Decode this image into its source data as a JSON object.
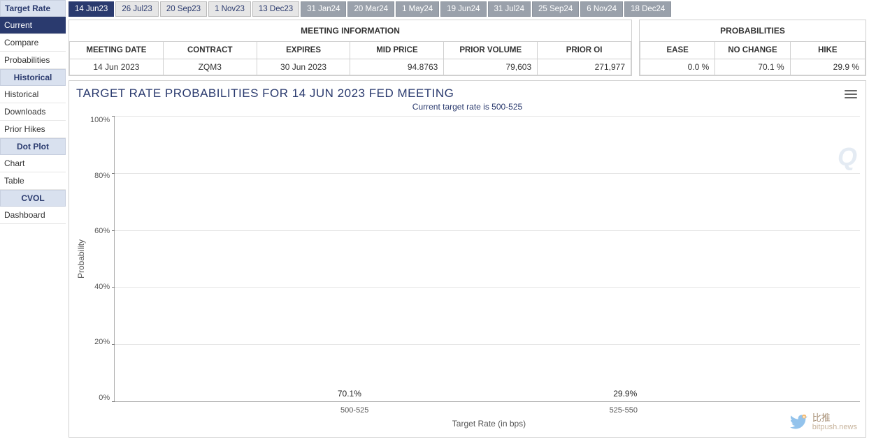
{
  "sidebar": {
    "sections": [
      {
        "title": "Target Rate",
        "items": [
          {
            "label": "Current",
            "active": true
          },
          {
            "label": "Compare"
          },
          {
            "label": "Probabilities"
          }
        ]
      },
      {
        "title": "Historical",
        "center": true,
        "items": [
          {
            "label": "Historical"
          },
          {
            "label": "Downloads"
          },
          {
            "label": "Prior Hikes"
          }
        ]
      },
      {
        "title": "Dot Plot",
        "center": true,
        "items": [
          {
            "label": "Chart"
          },
          {
            "label": "Table"
          }
        ]
      },
      {
        "title": "CVOL",
        "center": true,
        "items": [
          {
            "label": "Dashboard"
          }
        ]
      }
    ]
  },
  "tabs": [
    {
      "label": "14 Jun23",
      "style": "active"
    },
    {
      "label": "26 Jul23",
      "style": "normal"
    },
    {
      "label": "20 Sep23",
      "style": "normal"
    },
    {
      "label": "1 Nov23",
      "style": "normal"
    },
    {
      "label": "13 Dec23",
      "style": "normal"
    },
    {
      "label": "31 Jan24",
      "style": "dim"
    },
    {
      "label": "20 Mar24",
      "style": "dim"
    },
    {
      "label": "1 May24",
      "style": "dim"
    },
    {
      "label": "19 Jun24",
      "style": "dim"
    },
    {
      "label": "31 Jul24",
      "style": "dim"
    },
    {
      "label": "25 Sep24",
      "style": "dim"
    },
    {
      "label": "6 Nov24",
      "style": "dim"
    },
    {
      "label": "18 Dec24",
      "style": "dim"
    }
  ],
  "meeting_info": {
    "title": "MEETING INFORMATION",
    "headers": [
      "MEETING DATE",
      "CONTRACT",
      "EXPIRES",
      "MID PRICE",
      "PRIOR VOLUME",
      "PRIOR OI"
    ],
    "row": {
      "meeting_date": "14 Jun 2023",
      "contract": "ZQM3",
      "expires": "30 Jun 2023",
      "mid_price": "94.8763",
      "prior_volume": "79,603",
      "prior_oi": "271,977"
    }
  },
  "probabilities": {
    "title": "PROBABILITIES",
    "headers": [
      "EASE",
      "NO CHANGE",
      "HIKE"
    ],
    "row": {
      "ease": "0.0 %",
      "no_change": "70.1 %",
      "hike": "29.9 %"
    }
  },
  "chart": {
    "title": "TARGET RATE PROBABILITIES FOR 14 JUN 2023 FED MEETING",
    "subtitle": "Current target rate is 500-525",
    "type": "bar",
    "ylabel": "Probability",
    "xlabel": "Target Rate (in bps)",
    "ylim": [
      0,
      100
    ],
    "ytick_step": 20,
    "yticks": [
      "100%",
      "80%",
      "60%",
      "40%",
      "20%",
      "0%"
    ],
    "categories": [
      "500-525",
      "525-550"
    ],
    "values": [
      70.1,
      29.9
    ],
    "value_labels": [
      "70.1%",
      "29.9%"
    ],
    "bar_color": "#0a79a6",
    "grid_color": "#e4e4e4",
    "background_color": "#ffffff",
    "watermark": "Q"
  },
  "footer": {
    "brand_cn": "比推",
    "brand_en": "bitpush.news"
  }
}
